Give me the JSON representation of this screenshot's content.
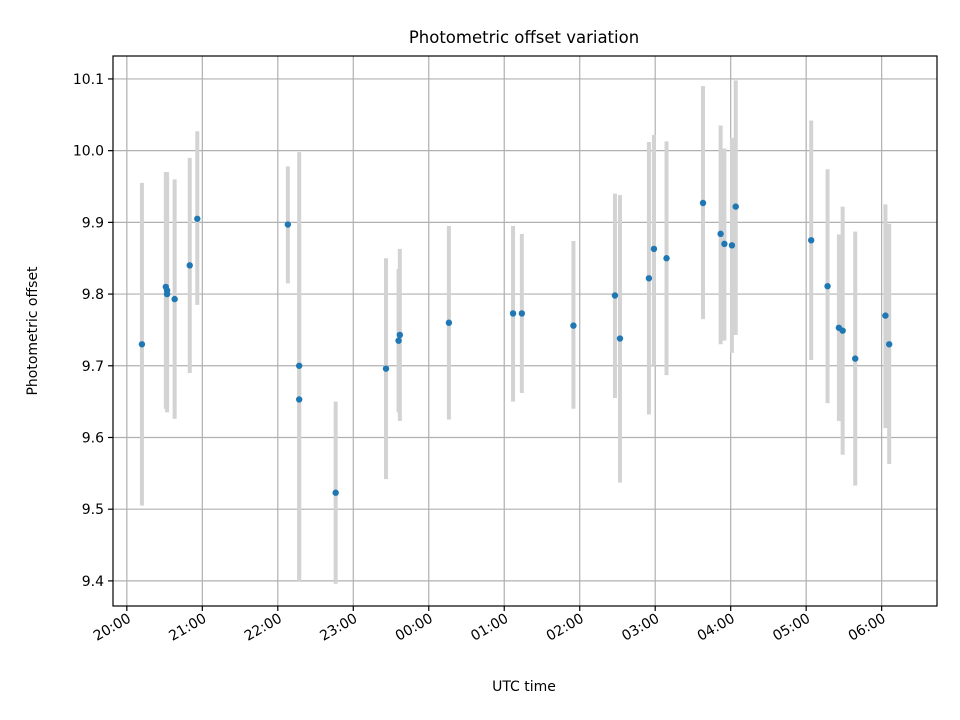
{
  "chart_data": {
    "type": "scatter",
    "title": "Photometric offset variation",
    "xlabel": "UTC time",
    "ylabel": "Photometric offset",
    "x_unit": "UTC time (HH:MM), night starting before midnight",
    "xlim": [
      "19:49",
      "06:44"
    ],
    "ylim": [
      9.365,
      10.132
    ],
    "x_ticks": [
      "20:00",
      "21:00",
      "22:00",
      "23:00",
      "00:00",
      "01:00",
      "02:00",
      "03:00",
      "04:00",
      "05:00",
      "06:00"
    ],
    "y_ticks": [
      "9.4",
      "9.5",
      "9.6",
      "9.7",
      "9.8",
      "9.9",
      "10.0",
      "10.1"
    ],
    "grid": true,
    "series": [
      {
        "marker_color": "#1f77b4",
        "errorbar_color": "#d3d3d3",
        "points": [
          {
            "x": "20:12",
            "y": 9.73,
            "ylow": 9.505,
            "yhigh": 9.955
          },
          {
            "x": "20:31",
            "y": 9.81,
            "ylow": 9.64,
            "yhigh": 9.97
          },
          {
            "x": "20:32",
            "y": 9.8,
            "ylow": 9.635,
            "yhigh": 9.965
          },
          {
            "x": "20:32",
            "y": 9.805,
            "ylow": 9.64,
            "yhigh": 9.97
          },
          {
            "x": "20:38",
            "y": 9.793,
            "ylow": 9.626,
            "yhigh": 9.96
          },
          {
            "x": "20:50",
            "y": 9.84,
            "ylow": 9.69,
            "yhigh": 9.99
          },
          {
            "x": "20:56",
            "y": 9.905,
            "ylow": 9.785,
            "yhigh": 10.027
          },
          {
            "x": "22:08",
            "y": 9.897,
            "ylow": 9.815,
            "yhigh": 9.978
          },
          {
            "x": "22:17",
            "y": 9.7,
            "ylow": 9.4,
            "yhigh": 9.998
          },
          {
            "x": "22:17",
            "y": 9.653,
            "ylow": 9.4,
            "yhigh": 9.9
          },
          {
            "x": "22:46",
            "y": 9.523,
            "ylow": 9.396,
            "yhigh": 9.65
          },
          {
            "x": "23:26",
            "y": 9.696,
            "ylow": 9.542,
            "yhigh": 9.85
          },
          {
            "x": "23:36",
            "y": 9.735,
            "ylow": 9.635,
            "yhigh": 9.835
          },
          {
            "x": "23:37",
            "y": 9.743,
            "ylow": 9.623,
            "yhigh": 9.863
          },
          {
            "x": "00:16",
            "y": 9.76,
            "ylow": 9.625,
            "yhigh": 9.895
          },
          {
            "x": "01:07",
            "y": 9.773,
            "ylow": 9.65,
            "yhigh": 9.895
          },
          {
            "x": "01:14",
            "y": 9.773,
            "ylow": 9.662,
            "yhigh": 9.884
          },
          {
            "x": "01:55",
            "y": 9.756,
            "ylow": 9.64,
            "yhigh": 9.874
          },
          {
            "x": "02:28",
            "y": 9.798,
            "ylow": 9.655,
            "yhigh": 9.94
          },
          {
            "x": "02:32",
            "y": 9.738,
            "ylow": 9.537,
            "yhigh": 9.938
          },
          {
            "x": "02:55",
            "y": 9.822,
            "ylow": 9.632,
            "yhigh": 10.012
          },
          {
            "x": "02:59",
            "y": 9.863,
            "ylow": 9.7,
            "yhigh": 10.022
          },
          {
            "x": "03:09",
            "y": 9.85,
            "ylow": 9.687,
            "yhigh": 10.013
          },
          {
            "x": "03:38",
            "y": 9.927,
            "ylow": 9.765,
            "yhigh": 10.09
          },
          {
            "x": "03:52",
            "y": 9.884,
            "ylow": 9.73,
            "yhigh": 10.035
          },
          {
            "x": "03:55",
            "y": 9.87,
            "ylow": 9.735,
            "yhigh": 10.003
          },
          {
            "x": "04:01",
            "y": 9.868,
            "ylow": 9.718,
            "yhigh": 10.018
          },
          {
            "x": "04:04",
            "y": 9.922,
            "ylow": 9.743,
            "yhigh": 10.098
          },
          {
            "x": "05:04",
            "y": 9.875,
            "ylow": 9.708,
            "yhigh": 10.042
          },
          {
            "x": "05:17",
            "y": 9.811,
            "ylow": 9.648,
            "yhigh": 9.974
          },
          {
            "x": "05:26",
            "y": 9.753,
            "ylow": 9.623,
            "yhigh": 9.883
          },
          {
            "x": "05:29",
            "y": 9.749,
            "ylow": 9.576,
            "yhigh": 9.922
          },
          {
            "x": "05:39",
            "y": 9.71,
            "ylow": 9.533,
            "yhigh": 9.887
          },
          {
            "x": "06:03",
            "y": 9.77,
            "ylow": 9.613,
            "yhigh": 9.925
          },
          {
            "x": "06:06",
            "y": 9.73,
            "ylow": 9.563,
            "yhigh": 9.898
          }
        ]
      }
    ]
  }
}
